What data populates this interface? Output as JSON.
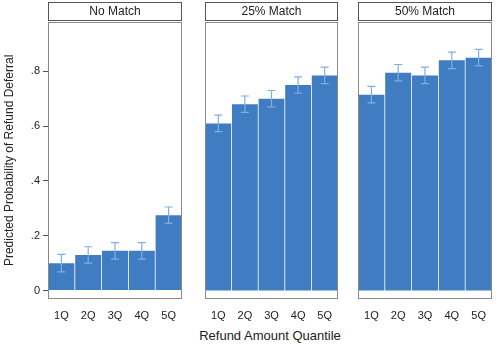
{
  "chart_data": [
    {
      "type": "bar",
      "title": "No Match",
      "categories": [
        "1Q",
        "2Q",
        "3Q",
        "4Q",
        "5Q"
      ],
      "values": [
        0.1,
        0.13,
        0.145,
        0.145,
        0.275
      ],
      "error": [
        0.032,
        0.03,
        0.03,
        0.03,
        0.03
      ],
      "color": "#3f7cc2",
      "ylim": [
        -0.03,
        0.98
      ],
      "yticks": [
        0,
        {
          "value": 0.2,
          "label": ".2"
        },
        {
          "value": 0.4,
          "label": ".4"
        },
        {
          "value": 0.6,
          "label": ".6"
        },
        {
          "value": 0.8,
          "label": ".8"
        }
      ],
      "ylabel": "Predicted Probability of Refund Deferral"
    },
    {
      "type": "bar",
      "title": "25% Match",
      "categories": [
        "1Q",
        "2Q",
        "3Q",
        "4Q",
        "5Q"
      ],
      "values": [
        0.61,
        0.68,
        0.7,
        0.75,
        0.785
      ],
      "error": [
        0.03,
        0.03,
        0.03,
        0.03,
        0.03
      ],
      "color": "#3f7cc2",
      "ylim": [
        -0.03,
        0.98
      ],
      "yticks": [
        0,
        {
          "value": 0.2,
          "label": ".2"
        },
        {
          "value": 0.4,
          "label": ".4"
        },
        {
          "value": 0.6,
          "label": ".6"
        },
        {
          "value": 0.8,
          "label": ".8"
        }
      ],
      "xlabel": "Refund Amount Quantile",
      "tick_labels": "x"
    },
    {
      "type": "bar",
      "title": "50% Match",
      "categories": [
        "1Q",
        "2Q",
        "3Q",
        "4Q",
        "5Q"
      ],
      "values": [
        0.715,
        0.795,
        0.785,
        0.84,
        0.85
      ],
      "error": [
        0.03,
        0.03,
        0.03,
        0.03,
        0.03
      ],
      "color": "#3f7cc2",
      "ylim": [
        -0.03,
        0.98
      ],
      "yticks": [
        0,
        {
          "value": 0.2,
          "label": ".2"
        },
        {
          "value": 0.4,
          "label": ".4"
        },
        {
          "value": 0.6,
          "label": ".6"
        },
        {
          "value": 0.8,
          "label": ".8"
        }
      ],
      "tick_labels": "x"
    }
  ]
}
